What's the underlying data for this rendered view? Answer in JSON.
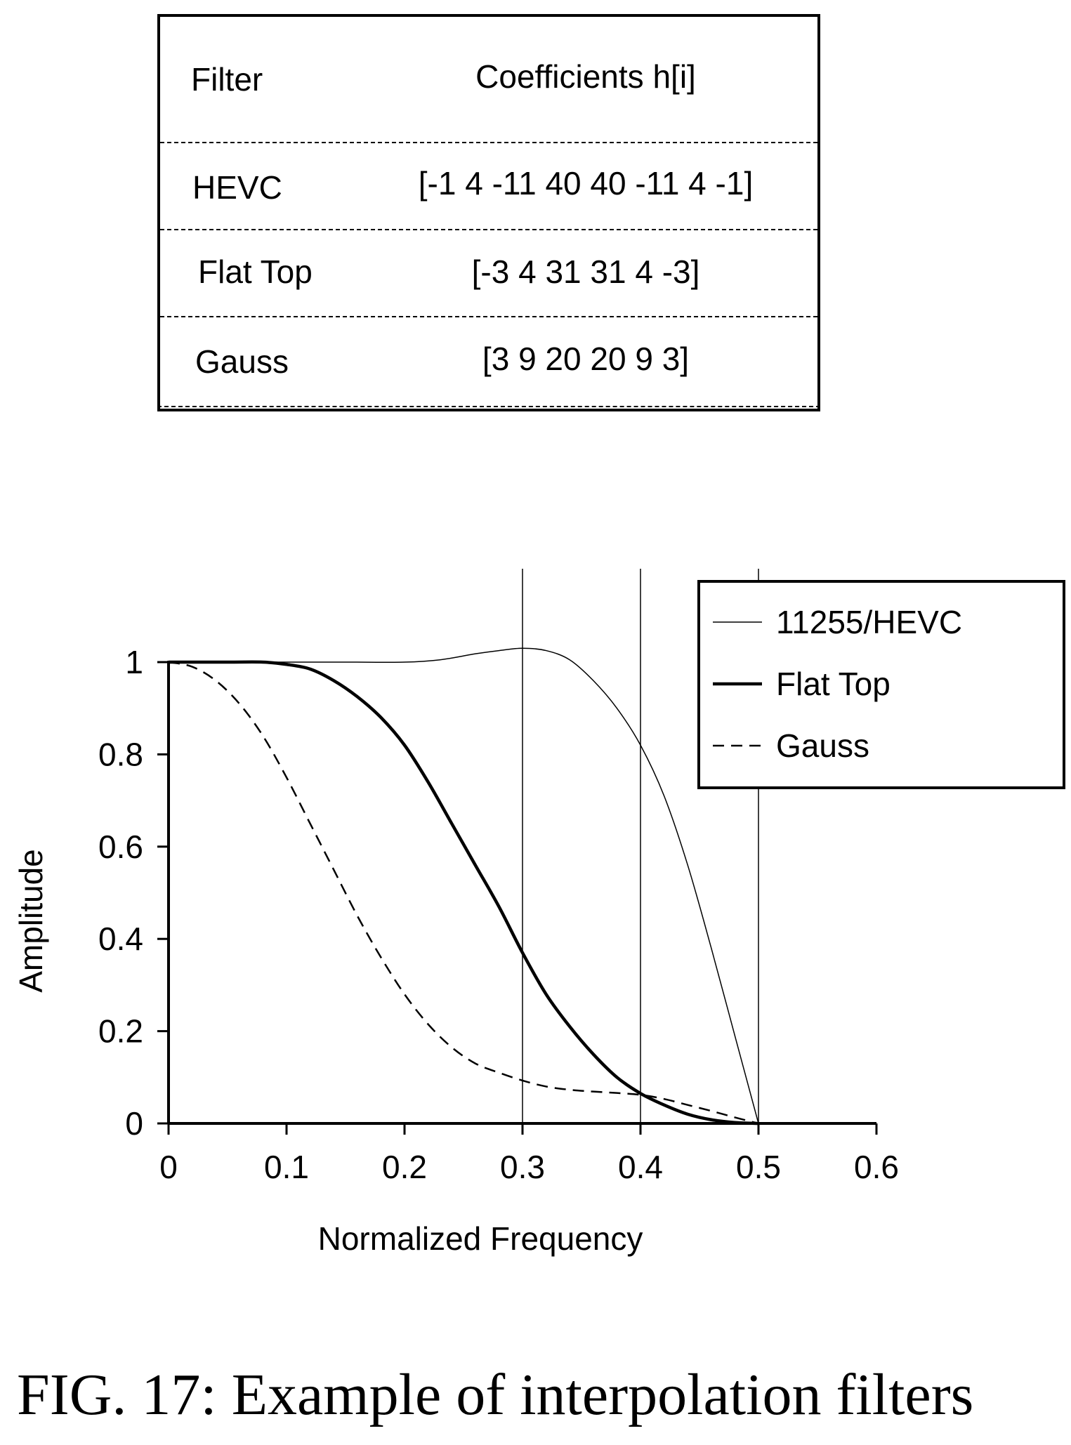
{
  "table": {
    "header": {
      "filter": "Filter",
      "coefficients": "Coefficients h[i]"
    },
    "rows": [
      {
        "filter": "HEVC",
        "coefficients": "[-1 4 -11 40 40 -11 4 -1]"
      },
      {
        "filter": "Flat Top",
        "coefficients": "[-3 4 31 31 4 -3]"
      },
      {
        "filter": "Gauss",
        "coefficients": "[3 9 20 20 9 3]"
      }
    ]
  },
  "chart_data": {
    "type": "line",
    "xlabel": "Normalized Frequency",
    "ylabel": "Amplitude",
    "xlim": [
      0,
      0.6
    ],
    "ylim": [
      0,
      1.1
    ],
    "xticks": [
      "0",
      "0.1",
      "0.2",
      "0.3",
      "0.4",
      "0.5",
      "0.6"
    ],
    "yticks": [
      "0",
      "0.2",
      "0.4",
      "0.6",
      "0.8",
      "1"
    ],
    "vertical_gridlines_at": [
      0.3,
      0.4,
      0.5
    ],
    "legend_position": "top-right",
    "series": [
      {
        "name": "11255/HEVC",
        "style": "thin-solid",
        "x": [
          0,
          0.05,
          0.1,
          0.15,
          0.2,
          0.23,
          0.26,
          0.28,
          0.3,
          0.32,
          0.34,
          0.36,
          0.38,
          0.4,
          0.42,
          0.44,
          0.46,
          0.48,
          0.5
        ],
        "y": [
          1.0,
          1.0,
          1.0,
          1.0,
          1.0,
          1.005,
          1.018,
          1.025,
          1.03,
          1.025,
          1.005,
          0.96,
          0.9,
          0.82,
          0.71,
          0.56,
          0.38,
          0.19,
          0.0
        ]
      },
      {
        "name": "Flat Top",
        "style": "thick-solid",
        "x": [
          0,
          0.05,
          0.08,
          0.1,
          0.12,
          0.14,
          0.16,
          0.18,
          0.2,
          0.22,
          0.24,
          0.26,
          0.28,
          0.3,
          0.32,
          0.34,
          0.36,
          0.38,
          0.4,
          0.42,
          0.44,
          0.46,
          0.48,
          0.5
        ],
        "y": [
          1.0,
          1.0,
          1.0,
          0.995,
          0.985,
          0.96,
          0.925,
          0.88,
          0.82,
          0.74,
          0.65,
          0.56,
          0.47,
          0.37,
          0.28,
          0.21,
          0.15,
          0.1,
          0.065,
          0.04,
          0.02,
          0.008,
          0.002,
          0.0
        ]
      },
      {
        "name": "Gauss",
        "style": "dashed",
        "x": [
          0,
          0.02,
          0.04,
          0.06,
          0.08,
          0.1,
          0.12,
          0.14,
          0.16,
          0.18,
          0.2,
          0.22,
          0.24,
          0.26,
          0.28,
          0.3,
          0.32,
          0.34,
          0.36,
          0.38,
          0.4,
          0.42,
          0.44,
          0.46,
          0.48,
          0.5
        ],
        "y": [
          1.0,
          0.99,
          0.96,
          0.91,
          0.84,
          0.75,
          0.65,
          0.55,
          0.45,
          0.36,
          0.28,
          0.215,
          0.165,
          0.13,
          0.11,
          0.093,
          0.08,
          0.073,
          0.069,
          0.066,
          0.062,
          0.053,
          0.04,
          0.027,
          0.013,
          0.0
        ]
      }
    ]
  },
  "caption": "FIG. 17: Example of interpolation filters"
}
